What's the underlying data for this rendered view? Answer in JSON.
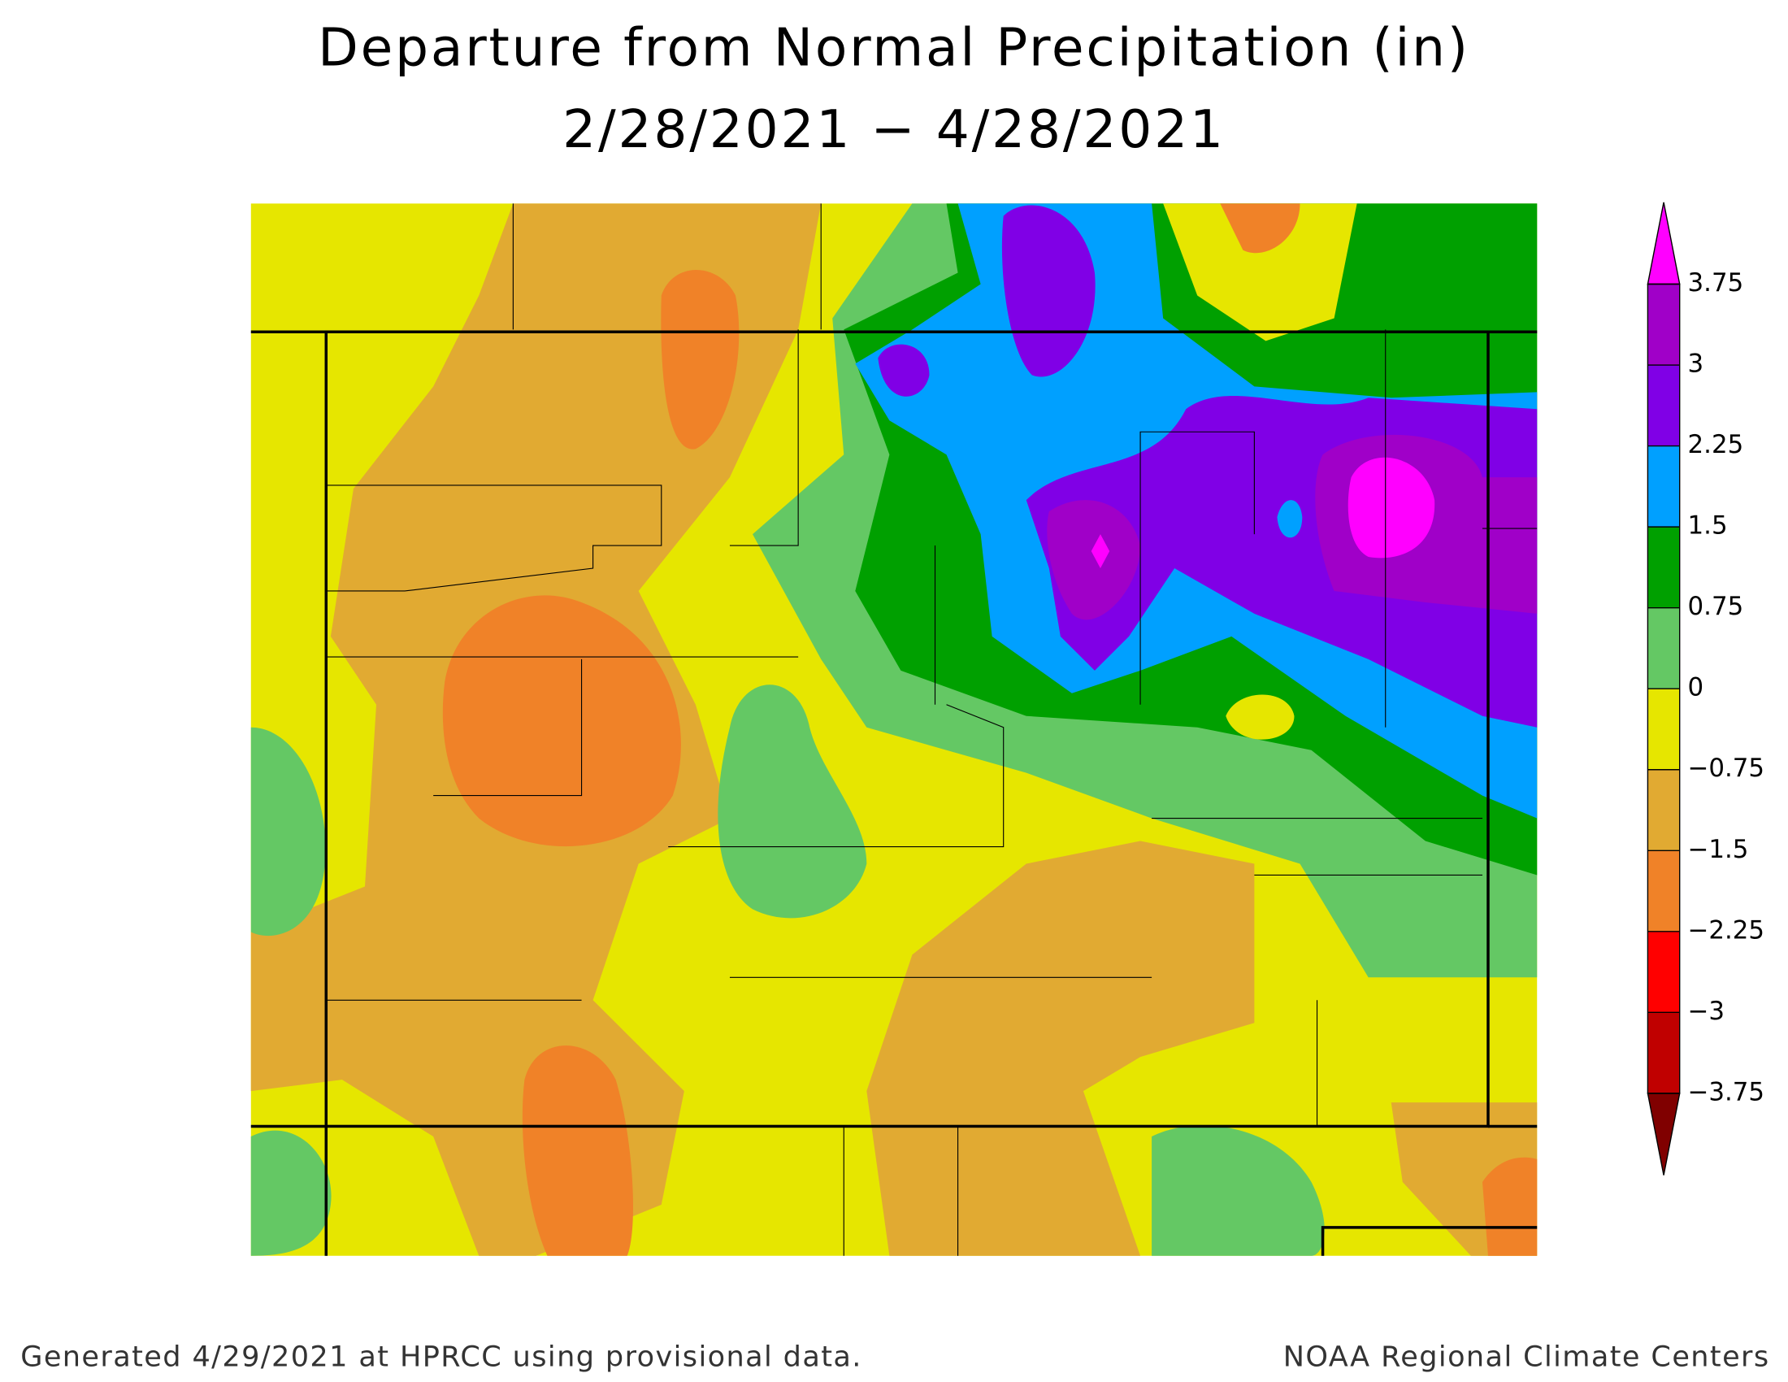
{
  "chart_data": {
    "type": "colorbar",
    "title": "Departure from Normal Precipitation (in)",
    "subtitle": "2/28/2021 − 4/28/2021",
    "footer_left": "Generated 4/29/2021 at HPRCC using provisional data.",
    "footer_right": "NOAA Regional Climate Centers",
    "ylim": [
      -3.75,
      3.75
    ],
    "levels": [
      3.75,
      3,
      2.25,
      1.5,
      0.75,
      0,
      {
        "value": -0.75,
        "label": "−0.75"
      },
      {
        "value": -1.5,
        "label": "−1.5"
      },
      {
        "value": -2.25,
        "label": "−2.25"
      },
      {
        "value": -3,
        "label": "−3"
      },
      {
        "value": -3.75,
        "label": "−3.75"
      }
    ],
    "colors": [
      "#ff00ff",
      "#a000c8",
      "#8000e6",
      "#00a0ff",
      "#00a000",
      "#64c864",
      "#e6e600",
      "#e1aa32",
      "#f08228",
      "#ff0000",
      "#c00000",
      "#800000"
    ]
  }
}
